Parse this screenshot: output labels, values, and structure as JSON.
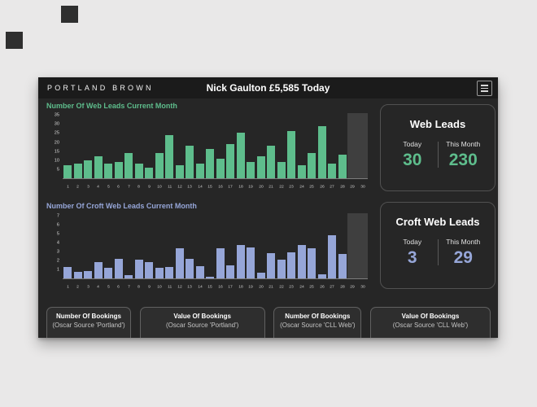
{
  "header": {
    "brand": "PORTLAND BROWN",
    "title": "Nick Gaulton £5,585 Today",
    "menu_icon": "hamburger-menu-icon"
  },
  "chart_data": [
    {
      "type": "bar",
      "title": "Number Of Web Leads Current Month",
      "color": "#5ebd8c",
      "categories": [
        "1",
        "2",
        "3",
        "4",
        "5",
        "6",
        "7",
        "8",
        "9",
        "10",
        "11",
        "12",
        "13",
        "14",
        "15",
        "16",
        "17",
        "18",
        "19",
        "20",
        "21",
        "22",
        "23",
        "24",
        "25",
        "26",
        "27",
        "28",
        "29",
        "30"
      ],
      "values": [
        7,
        8,
        10,
        12,
        8,
        9,
        14,
        8,
        6,
        14,
        24,
        7,
        18,
        8,
        16,
        11,
        19,
        25,
        9,
        12,
        18,
        9,
        26,
        7,
        14,
        29,
        8,
        13,
        0,
        0
      ],
      "xlabel": "",
      "ylabel": "",
      "yticks": [
        5,
        10,
        15,
        20,
        25,
        30,
        35
      ],
      "ylim": [
        0,
        36
      ],
      "grid": false,
      "legend": false,
      "highlight_band": {
        "from": 29,
        "to": 30,
        "color": "#3f3f3f"
      }
    },
    {
      "type": "bar",
      "title": "Number Of Croft Web Leads Current Month",
      "color": "#96a6d8",
      "categories": [
        "1",
        "2",
        "3",
        "4",
        "5",
        "6",
        "7",
        "8",
        "9",
        "10",
        "11",
        "12",
        "13",
        "14",
        "15",
        "16",
        "17",
        "18",
        "19",
        "20",
        "21",
        "22",
        "23",
        "24",
        "25",
        "26",
        "27",
        "28",
        "29",
        "30"
      ],
      "values": [
        1.3,
        0.7,
        0.8,
        1.8,
        1.2,
        2.2,
        0.4,
        2.1,
        1.8,
        1.2,
        1.3,
        3.4,
        2.2,
        1.4,
        0.2,
        3.4,
        1.5,
        3.7,
        3.5,
        0.6,
        2.8,
        2.1,
        2.9,
        3.7,
        3.4,
        0.5,
        4.8,
        2.7,
        0,
        0
      ],
      "xlabel": "",
      "ylabel": "",
      "yticks": [
        1,
        2,
        3,
        4,
        5,
        6,
        7
      ],
      "ylim": [
        0,
        7.3
      ],
      "grid": false,
      "legend": false,
      "highlight_band": {
        "from": 29,
        "to": 30,
        "color": "#3f3f3f"
      }
    }
  ],
  "cards": [
    {
      "title": "Web Leads",
      "today_label": "Today",
      "today_value": "30",
      "month_label": "This Month",
      "month_value": "230",
      "accent": "#5ebd8c"
    },
    {
      "title": "Croft Web Leads",
      "today_label": "Today",
      "today_value": "3",
      "month_label": "This Month",
      "month_value": "29",
      "accent": "#96a6d8"
    }
  ],
  "footer_buttons": [
    {
      "title": "Number Of Bookings",
      "subtitle": "(Oscar Source 'Portland')"
    },
    {
      "title": "Value Of Bookings",
      "subtitle": "(Oscar Source 'Portland')"
    },
    {
      "title": "Number Of Bookings",
      "subtitle": "(Oscar Source 'CLL Web')"
    },
    {
      "title": "Value Of Bookings",
      "subtitle": "(Oscar Source 'CLL Web')"
    }
  ]
}
